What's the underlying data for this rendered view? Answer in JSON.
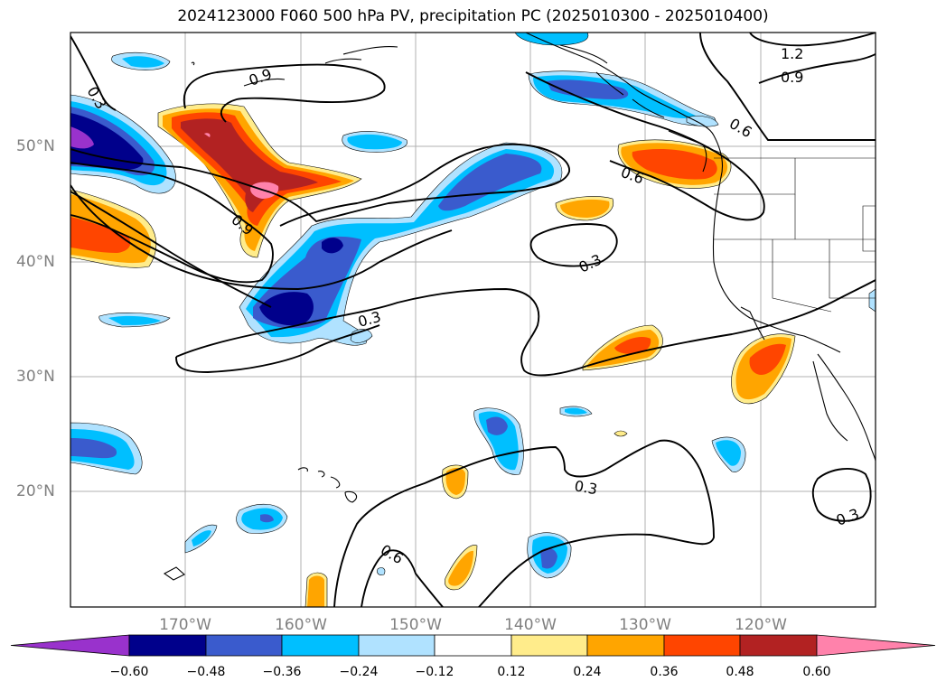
{
  "title": "2024123000 F060 500 hPa PV, precipitation PC (2025010300 - 2025010400)",
  "lat_labels": [
    "50°N",
    "40°N",
    "30°N",
    "20°N"
  ],
  "lon_labels": [
    "170°W",
    "160°W",
    "150°W",
    "140°W",
    "130°W",
    "120°W"
  ],
  "contour_labels": [
    "0.3",
    "0.9",
    "1.2",
    "0.9",
    "0.6",
    "0.6",
    "0.9",
    "0.3",
    "0.3",
    "0.3",
    "0.6",
    "0.3"
  ],
  "colorbar": {
    "ticks": [
      "−0.60",
      "−0.48",
      "−0.36",
      "−0.24",
      "−0.12",
      "0.12",
      "0.24",
      "0.36",
      "0.48",
      "0.60"
    ],
    "colors": [
      "#9932cc",
      "#00008b",
      "#3a5bcd",
      "#00bfff",
      "#b0e2ff",
      "#ffffff",
      "#ffec8b",
      "#ffa500",
      "#ff4500",
      "#b22222",
      "#ff82ab"
    ]
  },
  "shading": {
    "neg_light": "#b0e2ff",
    "neg1": "#00bfff",
    "neg2": "#3a5bcd",
    "neg3": "#00008b",
    "neg4": "#9932cc",
    "pos_light": "#ffec8b",
    "pos1": "#ffa500",
    "pos2": "#ff4500",
    "pos3": "#b22222",
    "pos4": "#ff82ab"
  }
}
